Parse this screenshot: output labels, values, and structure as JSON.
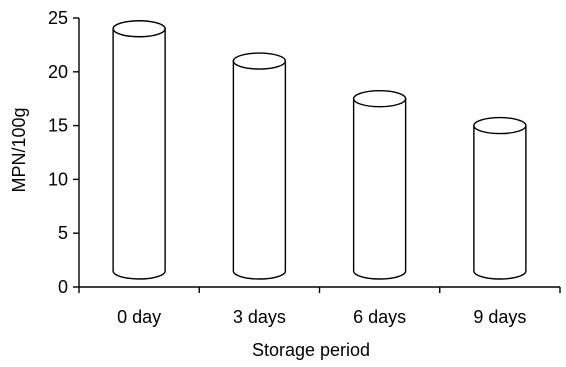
{
  "chart_data": {
    "type": "bar",
    "style": "3d-cylinder",
    "categories": [
      "0 day",
      "3 days",
      "6 days",
      "9 days"
    ],
    "values": [
      24,
      21,
      17.5,
      15
    ],
    "xlabel": "Storage period",
    "ylabel": "MPN/100g",
    "ylim": [
      0,
      25
    ],
    "yticks": [
      "0",
      "5",
      "10",
      "15",
      "20",
      "25"
    ],
    "grid": false,
    "legend": "none",
    "colors": {
      "bar_fill": "#ffffff",
      "bar_stroke": "#000000",
      "axis": "#000000"
    }
  }
}
